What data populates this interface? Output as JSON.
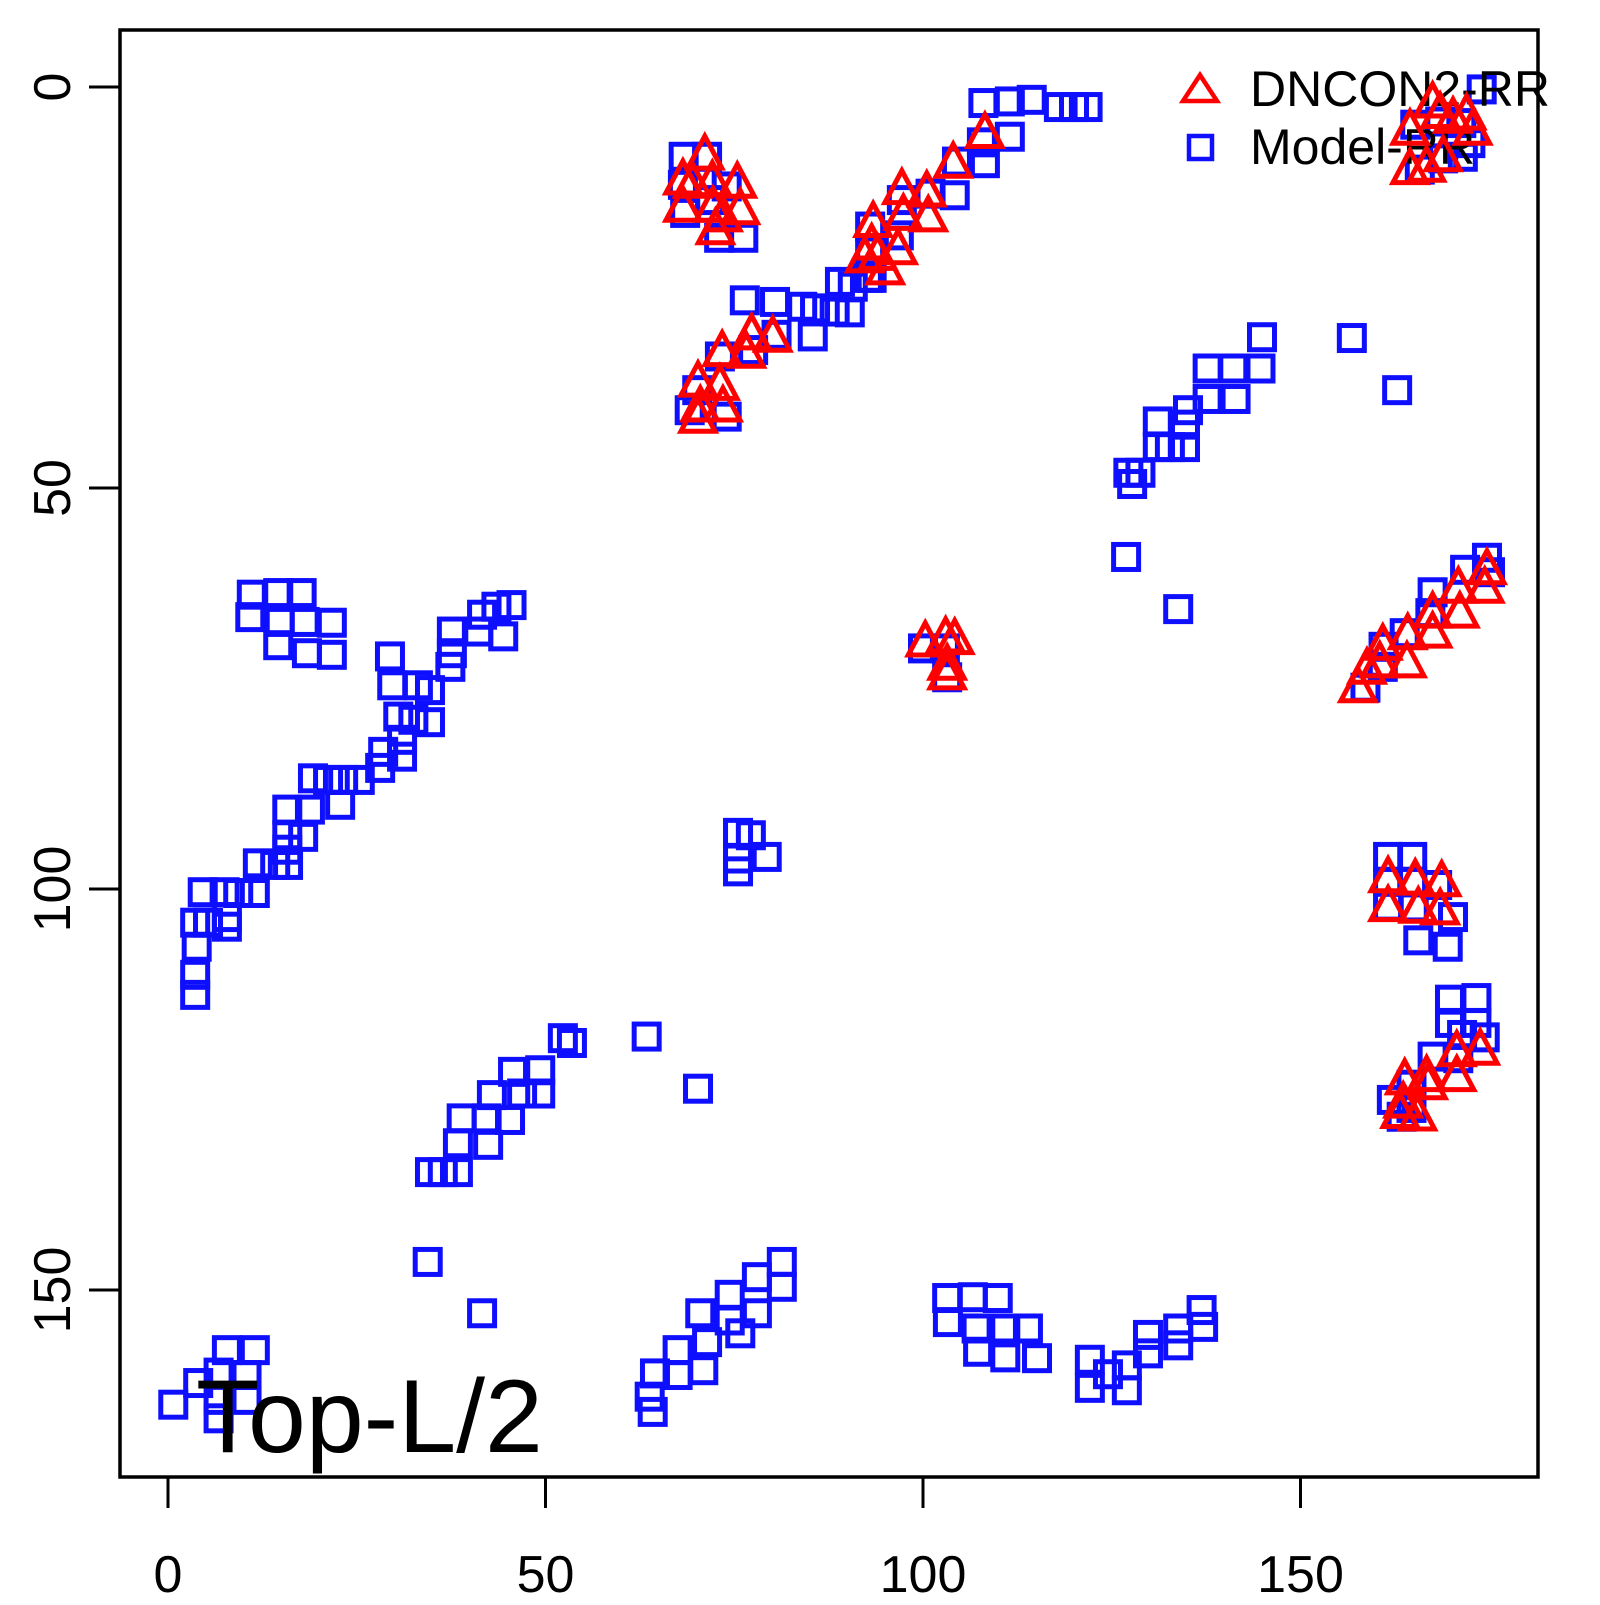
{
  "chart_data": {
    "type": "scatter",
    "title": "",
    "xlabel": "",
    "ylabel": "",
    "x_ticks": [
      0,
      50,
      100,
      150
    ],
    "y_ticks": [
      0,
      50,
      100,
      150
    ],
    "xlim": [
      -6,
      181
    ],
    "ylim": [
      -7,
      173
    ],
    "y_axis_inverted": true,
    "grid": false,
    "legend_position": "top-right",
    "annotation": "Top-L/2",
    "axis_color": "#000000",
    "series": [
      {
        "name": "DNCON2-RR",
        "marker": "triangle",
        "color": "#ff0000",
        "points": [
          [
            71.1,
            8.5
          ],
          [
            68.2,
            11.6
          ],
          [
            72.1,
            11.8
          ],
          [
            75.4,
            12.0
          ],
          [
            68.2,
            15.0
          ],
          [
            72.2,
            15.0
          ],
          [
            75.8,
            15.3
          ],
          [
            72.5,
            17.8
          ],
          [
            69.5,
            12.0
          ],
          [
            73.5,
            16.2
          ],
          [
            77.3,
            30.9
          ],
          [
            80.1,
            31.2
          ],
          [
            73.4,
            33.0
          ],
          [
            76.6,
            33.2
          ],
          [
            70.2,
            36.8
          ],
          [
            73.1,
            37.2
          ],
          [
            70.5,
            39.9
          ],
          [
            73.5,
            39.9
          ],
          [
            70.2,
            41.3
          ],
          [
            97.2,
            12.8
          ],
          [
            100.5,
            13.1
          ],
          [
            93.4,
            16.9
          ],
          [
            97.4,
            16.0
          ],
          [
            100.7,
            16.2
          ],
          [
            93.2,
            19.7
          ],
          [
            96.7,
            20.3
          ],
          [
            94.0,
            21.0
          ],
          [
            92.3,
            21.3
          ],
          [
            95.0,
            22.8
          ],
          [
            104.0,
            9.5
          ],
          [
            108.2,
            5.8
          ],
          [
            164.5,
            5.4
          ],
          [
            167.5,
            2.0
          ],
          [
            168.5,
            3.3
          ],
          [
            170.2,
            3.9
          ],
          [
            172.0,
            3.5
          ],
          [
            172.8,
            5.4
          ],
          [
            168.9,
            8.7
          ],
          [
            166.7,
            10.0
          ],
          [
            164.5,
            10.3
          ],
          [
            100.3,
            69.2
          ],
          [
            103.0,
            68.7
          ],
          [
            104.2,
            68.9
          ],
          [
            103.2,
            72.1
          ],
          [
            103.2,
            73.3
          ],
          [
            157.6,
            74.9
          ],
          [
            158.8,
            72.6
          ],
          [
            160.5,
            71.8
          ],
          [
            160.9,
            69.6
          ],
          [
            164.1,
            71.8
          ],
          [
            164.2,
            68.3
          ],
          [
            167.5,
            68.1
          ],
          [
            167.5,
            65.6
          ],
          [
            171.1,
            65.6
          ],
          [
            170.9,
            62.5
          ],
          [
            174.4,
            62.5
          ],
          [
            174.7,
            60.2
          ],
          [
            161.6,
            98.6
          ],
          [
            165.2,
            98.9
          ],
          [
            168.7,
            99.1
          ],
          [
            161.6,
            102.2
          ],
          [
            165.6,
            102.4
          ],
          [
            168.5,
            102.6
          ],
          [
            170.7,
            120.3
          ],
          [
            173.8,
            120.1
          ],
          [
            170.7,
            123.4
          ],
          [
            166.7,
            123.4
          ],
          [
            163.8,
            123.8
          ],
          [
            166.9,
            124.4
          ],
          [
            163.6,
            126.7
          ],
          [
            163.2,
            128.0
          ],
          [
            165.5,
            128.3
          ]
        ]
      },
      {
        "name": "Model-RR",
        "marker": "square",
        "color": "#0f0fff",
        "points": [
          [
            68.3,
            8.7
          ],
          [
            71.4,
            8.7
          ],
          [
            68.2,
            12.2
          ],
          [
            74.0,
            12.4
          ],
          [
            71.8,
            14.1
          ],
          [
            68.5,
            15.7
          ],
          [
            73.0,
            18.8
          ],
          [
            76.2,
            18.8
          ],
          [
            77.5,
            32.8
          ],
          [
            73.1,
            33.6
          ],
          [
            70.1,
            37.8
          ],
          [
            74.0,
            41.1
          ],
          [
            69.1,
            40.3
          ],
          [
            76.4,
            26.6
          ],
          [
            80.4,
            26.8
          ],
          [
            84.0,
            27.4
          ],
          [
            85.7,
            27.6
          ],
          [
            89.0,
            24.3
          ],
          [
            90.7,
            24.9
          ],
          [
            88.3,
            28.0
          ],
          [
            90.3,
            28.1
          ],
          [
            85.4,
            31.1
          ],
          [
            80.6,
            30.9
          ],
          [
            92.7,
            23.8
          ],
          [
            93.0,
            17.4
          ],
          [
            96.8,
            18.5
          ],
          [
            93.0,
            20.4
          ],
          [
            93.2,
            23.8
          ],
          [
            97.2,
            14.1
          ],
          [
            101.0,
            13.3
          ],
          [
            104.2,
            13.5
          ],
          [
            104.5,
            9.3
          ],
          [
            108.2,
            9.5
          ],
          [
            107.8,
            6.9
          ],
          [
            108.0,
            2.0
          ],
          [
            111.5,
            1.8
          ],
          [
            114.4,
            1.6
          ],
          [
            111.5,
            6.2
          ],
          [
            118.0,
            2.5
          ],
          [
            120.0,
            2.5
          ],
          [
            121.8,
            2.5
          ],
          [
            174.0,
            0.3
          ],
          [
            165.2,
            4.7
          ],
          [
            168.5,
            4.3
          ],
          [
            171.3,
            4.5
          ],
          [
            172.5,
            7.0
          ],
          [
            171.5,
            8.7
          ],
          [
            165.8,
            10.3
          ],
          [
            168.9,
            8.9
          ],
          [
            144.9,
            31.2
          ],
          [
            144.7,
            35.1
          ],
          [
            141.1,
            35.1
          ],
          [
            137.7,
            35.1
          ],
          [
            141.4,
            38.9
          ],
          [
            137.7,
            38.9
          ],
          [
            135.1,
            40.3
          ],
          [
            134.7,
            42.1
          ],
          [
            131.1,
            41.7
          ],
          [
            134.7,
            44.9
          ],
          [
            132.7,
            44.9
          ],
          [
            131.1,
            44.9
          ],
          [
            128.8,
            48.1
          ],
          [
            127.2,
            48.1
          ],
          [
            127.7,
            49.5
          ],
          [
            156.8,
            31.3
          ],
          [
            162.8,
            37.8
          ],
          [
            126.9,
            58.6
          ],
          [
            133.8,
            65.1
          ],
          [
            158.6,
            74.9
          ],
          [
            160.9,
            72.3
          ],
          [
            161.0,
            69.8
          ],
          [
            163.8,
            68.1
          ],
          [
            167.2,
            65.6
          ],
          [
            167.5,
            63.0
          ],
          [
            171.8,
            60.2
          ],
          [
            174.7,
            58.7
          ],
          [
            175.1,
            60.5
          ],
          [
            100.0,
            70.0
          ],
          [
            102.9,
            70.0
          ],
          [
            103.2,
            73.6
          ],
          [
            11.1,
            63.3
          ],
          [
            14.6,
            63.1
          ],
          [
            17.7,
            63.1
          ],
          [
            10.9,
            66.1
          ],
          [
            14.8,
            66.7
          ],
          [
            18.1,
            66.7
          ],
          [
            21.7,
            66.8
          ],
          [
            14.6,
            69.6
          ],
          [
            18.4,
            70.6
          ],
          [
            21.7,
            70.8
          ],
          [
            43.5,
            64.8
          ],
          [
            45.5,
            64.6
          ],
          [
            41.6,
            65.8
          ],
          [
            37.6,
            67.9
          ],
          [
            41.1,
            67.9
          ],
          [
            44.4,
            68.5
          ],
          [
            37.6,
            70.6
          ],
          [
            37.4,
            72.3
          ],
          [
            29.4,
            71.0
          ],
          [
            29.7,
            74.6
          ],
          [
            33.1,
            74.6
          ],
          [
            34.7,
            75.2
          ],
          [
            30.5,
            78.5
          ],
          [
            32.5,
            78.9
          ],
          [
            34.7,
            79.2
          ],
          [
            31.0,
            81.4
          ],
          [
            28.5,
            82.9
          ],
          [
            31.0,
            83.5
          ],
          [
            28.1,
            84.9
          ],
          [
            21.2,
            86.4
          ],
          [
            23.2,
            86.4
          ],
          [
            25.4,
            86.4
          ],
          [
            19.2,
            86.2
          ],
          [
            22.8,
            89.5
          ],
          [
            15.8,
            90.1
          ],
          [
            18.8,
            90.1
          ],
          [
            15.8,
            93.3
          ],
          [
            17.9,
            93.5
          ],
          [
            15.8,
            95.1
          ],
          [
            11.9,
            96.8
          ],
          [
            14.2,
            97.0
          ],
          [
            15.9,
            97.0
          ],
          [
            4.6,
            100.4
          ],
          [
            7.5,
            100.4
          ],
          [
            9.3,
            100.5
          ],
          [
            11.5,
            100.5
          ],
          [
            3.6,
            104.2
          ],
          [
            5.3,
            104.2
          ],
          [
            7.8,
            103.5
          ],
          [
            7.8,
            104.7
          ],
          [
            3.8,
            107.2
          ],
          [
            3.6,
            110.7
          ],
          [
            3.6,
            113.2
          ],
          [
            52.3,
            118.6
          ],
          [
            53.5,
            119.2
          ],
          [
            45.7,
            122.8
          ],
          [
            49.3,
            122.6
          ],
          [
            42.9,
            125.7
          ],
          [
            46.9,
            125.5
          ],
          [
            49.3,
            125.5
          ],
          [
            38.9,
            128.6
          ],
          [
            42.2,
            128.6
          ],
          [
            45.3,
            128.8
          ],
          [
            38.4,
            131.7
          ],
          [
            42.4,
            131.9
          ],
          [
            34.7,
            135.3
          ],
          [
            36.4,
            135.3
          ],
          [
            38.4,
            135.3
          ],
          [
            63.4,
            118.4
          ],
          [
            70.2,
            124.9
          ],
          [
            34.4,
            146.5
          ],
          [
            41.6,
            152.9
          ],
          [
            75.5,
            93.0
          ],
          [
            77.2,
            93.3
          ],
          [
            75.5,
            96.2
          ],
          [
            79.3,
            96.0
          ],
          [
            75.5,
            97.8
          ],
          [
            81.3,
            146.5
          ],
          [
            81.3,
            149.6
          ],
          [
            78.0,
            148.4
          ],
          [
            74.4,
            150.6
          ],
          [
            78.0,
            152.9
          ],
          [
            74.4,
            153.8
          ],
          [
            70.5,
            152.9
          ],
          [
            71.4,
            156.5
          ],
          [
            75.8,
            155.4
          ],
          [
            67.5,
            157.5
          ],
          [
            70.9,
            160.0
          ],
          [
            64.5,
            160.4
          ],
          [
            67.5,
            160.6
          ],
          [
            63.8,
            163.3
          ],
          [
            64.2,
            165.2
          ],
          [
            103.2,
            151.0
          ],
          [
            106.6,
            150.9
          ],
          [
            109.9,
            151.0
          ],
          [
            103.3,
            154.0
          ],
          [
            107.1,
            154.8
          ],
          [
            110.9,
            154.8
          ],
          [
            113.9,
            154.8
          ],
          [
            107.3,
            157.7
          ],
          [
            110.9,
            158.4
          ],
          [
            115.1,
            158.5
          ],
          [
            122.1,
            158.7
          ],
          [
            122.1,
            162.2
          ],
          [
            127.0,
            159.4
          ],
          [
            127.0,
            162.5
          ],
          [
            129.8,
            157.9
          ],
          [
            129.8,
            155.6
          ],
          [
            133.8,
            154.8
          ],
          [
            133.8,
            156.9
          ],
          [
            136.9,
            152.5
          ],
          [
            137.1,
            154.6
          ],
          [
            124.5,
            160.5
          ],
          [
            161.6,
            96.0
          ],
          [
            164.8,
            96.0
          ],
          [
            161.6,
            99.1
          ],
          [
            164.8,
            99.1
          ],
          [
            168.1,
            99.5
          ],
          [
            161.6,
            102.2
          ],
          [
            165.0,
            102.3
          ],
          [
            170.2,
            103.5
          ],
          [
            165.6,
            106.4
          ],
          [
            169.5,
            107.2
          ],
          [
            169.8,
            113.8
          ],
          [
            173.3,
            113.6
          ],
          [
            169.8,
            116.7
          ],
          [
            173.3,
            116.7
          ],
          [
            171.4,
            118.2
          ],
          [
            174.4,
            118.5
          ],
          [
            167.5,
            120.9
          ],
          [
            170.9,
            121.1
          ],
          [
            164.7,
            124.4
          ],
          [
            162.1,
            126.3
          ],
          [
            164.7,
            127.3
          ],
          [
            163.4,
            128.4
          ],
          [
            7.8,
            157.5
          ],
          [
            11.5,
            157.5
          ],
          [
            6.7,
            160.3
          ],
          [
            10.4,
            160.6
          ],
          [
            4.0,
            161.6
          ],
          [
            0.7,
            164.3
          ],
          [
            6.7,
            163.7
          ],
          [
            10.4,
            163.7
          ],
          [
            6.7,
            166.0
          ]
        ]
      }
    ]
  }
}
